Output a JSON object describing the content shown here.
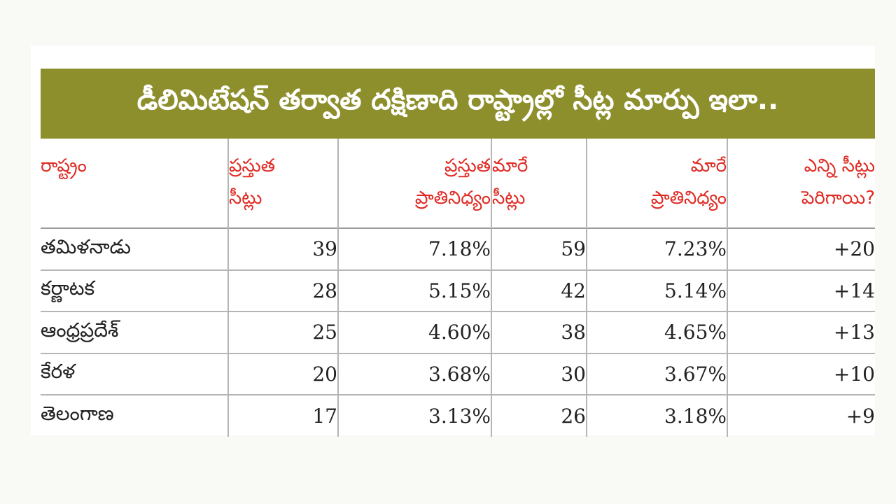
{
  "title": "డీలిమిటేషన్ తర్వాత దక్షిణాది రాష్ట్రాల్లో సీట్ల మార్పు ఇలా..",
  "headers": {
    "state": [
      "రాష్ట్రం"
    ],
    "current_seats": [
      "ప్రస్తుత",
      "సీట్లు"
    ],
    "current_share": [
      "ప్రస్తుత",
      "ప్రాతినిధ్యం"
    ],
    "new_seats": [
      "మారే",
      "సీట్లు"
    ],
    "new_share": [
      "మారే",
      "ప్రాతినిధ్యం"
    ],
    "increase": [
      "ఎన్ని సీట్లు",
      "పెరిగాయి?"
    ]
  },
  "rows": [
    {
      "state": "తమిళనాడు",
      "current_seats": "39",
      "current_share": "7.18%",
      "new_seats": "59",
      "new_share": "7.23%",
      "increase": "+20"
    },
    {
      "state": "కర్ణాటక",
      "current_seats": "28",
      "current_share": "5.15%",
      "new_seats": "42",
      "new_share": "5.14%",
      "increase": "+14"
    },
    {
      "state": "ఆంధ్రప్రదేశ్",
      "current_seats": "25",
      "current_share": "4.60%",
      "new_seats": "38",
      "new_share": "4.65%",
      "increase": "+13"
    },
    {
      "state": "కేరళ",
      "current_seats": "20",
      "current_share": "3.68%",
      "new_seats": "30",
      "new_share": "3.67%",
      "increase": "+10"
    },
    {
      "state": "తెలంగాణ",
      "current_seats": "17",
      "current_share": "3.13%",
      "new_seats": "26",
      "new_share": "3.18%",
      "increase": "+9"
    }
  ],
  "colors": {
    "banner": "#8d8e2c",
    "header_text": "#e02a23",
    "grid": "#b5b5b5"
  }
}
